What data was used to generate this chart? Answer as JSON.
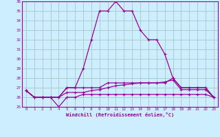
{
  "xlabel": "Windchill (Refroidissement éolien,°C)",
  "bg_color": "#cceeff",
  "grid_color": "#aacccc",
  "line_color": "#990099",
  "x": [
    0,
    1,
    2,
    3,
    4,
    5,
    6,
    7,
    8,
    9,
    10,
    11,
    12,
    13,
    14,
    15,
    16,
    17,
    18,
    19,
    20,
    21,
    22,
    23
  ],
  "y_main": [
    26.7,
    26.0,
    26.0,
    26.0,
    26.0,
    27.0,
    27.0,
    29.0,
    32.0,
    35.0,
    35.0,
    36.0,
    35.0,
    35.0,
    33.0,
    32.0,
    32.0,
    30.5,
    28.0,
    27.0,
    27.0,
    27.0,
    27.0,
    26.0
  ],
  "y_min": [
    26.7,
    26.0,
    26.0,
    26.0,
    25.0,
    26.0,
    26.0,
    26.3,
    26.3,
    26.3,
    26.3,
    26.3,
    26.3,
    26.3,
    26.3,
    26.3,
    26.3,
    26.3,
    26.3,
    26.3,
    26.3,
    26.3,
    26.3,
    26.0
  ],
  "y_max": [
    26.7,
    26.0,
    26.0,
    26.0,
    26.0,
    27.0,
    27.0,
    27.0,
    27.0,
    27.0,
    27.5,
    27.5,
    27.5,
    27.5,
    27.5,
    27.5,
    27.5,
    27.5,
    28.0,
    27.0,
    27.0,
    27.0,
    27.0,
    26.0
  ],
  "y_avg": [
    26.7,
    26.0,
    26.0,
    26.0,
    26.0,
    26.5,
    26.5,
    26.5,
    26.7,
    26.8,
    27.0,
    27.2,
    27.3,
    27.4,
    27.5,
    27.5,
    27.5,
    27.6,
    27.8,
    26.8,
    26.8,
    26.8,
    26.8,
    26.0
  ],
  "ylim": [
    25,
    36
  ],
  "xlim": [
    -0.5,
    23.5
  ],
  "yticks": [
    25,
    26,
    27,
    28,
    29,
    30,
    31,
    32,
    33,
    34,
    35,
    36
  ]
}
